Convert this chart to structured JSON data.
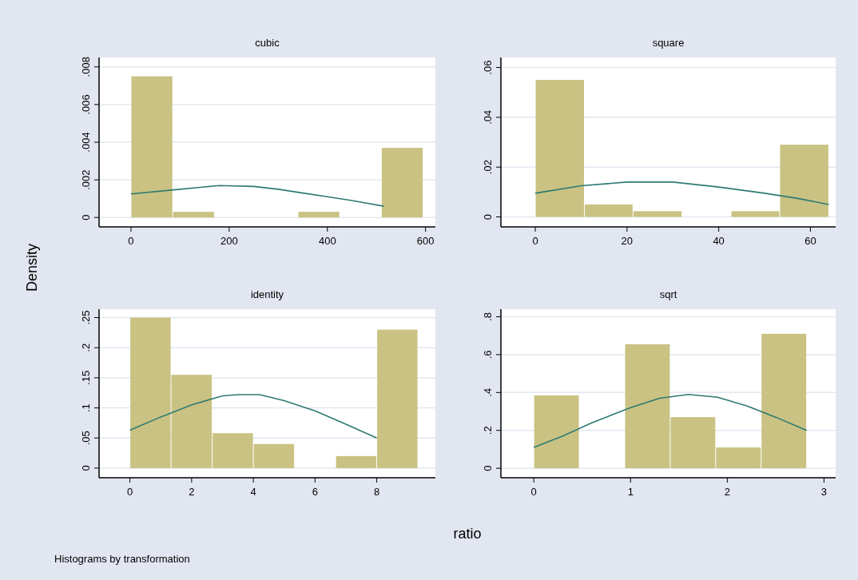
{
  "chart_data": [
    {
      "type": "histogram",
      "title": "cubic",
      "ylabel": "Density",
      "xlim": [
        -65,
        620
      ],
      "xticks": [
        0,
        200,
        400,
        600
      ],
      "ylim": [
        -0.0005,
        0.0085
      ],
      "yticks": [
        {
          "value": 0,
          "label": "0"
        },
        {
          "value": 0.002,
          "label": ".002"
        },
        {
          "value": 0.004,
          "label": ".004"
        },
        {
          "value": 0.006,
          "label": ".006"
        },
        {
          "value": 0.008,
          "label": ".008"
        }
      ],
      "grid": "y",
      "series": [
        {
          "color": "#c9c283",
          "bins": [
            0,
            85,
            170,
            255,
            340,
            425,
            510,
            595
          ],
          "values": [
            0.0075,
            0.0003,
            0,
            0,
            0.0003,
            0,
            0.0037
          ]
        },
        {
          "type": "line",
          "color": "#2e7a72",
          "x": [
            0,
            100,
            180,
            250,
            300,
            350,
            400,
            450,
            515
          ],
          "values": [
            0.00125,
            0.0015,
            0.0017,
            0.00165,
            0.0015,
            0.0013,
            0.0011,
            0.0009,
            0.0006
          ]
        }
      ]
    },
    {
      "type": "histogram",
      "title": "square",
      "xlim": [
        -7.5,
        65.5
      ],
      "xticks": [
        0,
        20,
        40,
        60
      ],
      "ylim": [
        -0.004,
        0.064
      ],
      "yticks": [
        {
          "value": 0,
          "label": "0"
        },
        {
          "value": 0.02,
          "label": ".02"
        },
        {
          "value": 0.04,
          "label": ".04"
        },
        {
          "value": 0.06,
          "label": ".06"
        }
      ],
      "grid": "y",
      "series": [
        {
          "color": "#c9c283",
          "bins": [
            0,
            10.7,
            21.3,
            32,
            42.7,
            53.3,
            64
          ],
          "values": [
            0.055,
            0.005,
            0.0023,
            0,
            0.0023,
            0.029
          ]
        },
        {
          "type": "line",
          "color": "#2e7a72",
          "x": [
            0,
            10,
            20,
            30,
            40,
            50,
            57,
            64
          ],
          "values": [
            0.0095,
            0.0125,
            0.014,
            0.014,
            0.012,
            0.0095,
            0.0075,
            0.005
          ]
        }
      ]
    },
    {
      "type": "histogram",
      "title": "identity",
      "xlabel": "ratio",
      "annotations": [
        "Histograms by transformation"
      ],
      "xlim": [
        -1,
        9.9
      ],
      "xticks": [
        0,
        2,
        4,
        6,
        8
      ],
      "ylim": [
        -0.016,
        0.264
      ],
      "yticks": [
        {
          "value": 0,
          "label": "0"
        },
        {
          "value": 0.05,
          "label": ".05"
        },
        {
          "value": 0.1,
          "label": ".1"
        },
        {
          "value": 0.15,
          "label": ".15"
        },
        {
          "value": 0.2,
          "label": ".2"
        },
        {
          "value": 0.25,
          "label": ".25"
        }
      ],
      "grid": "y",
      "series": [
        {
          "color": "#c9c283",
          "bins": [
            0,
            1.333,
            2.667,
            4,
            5.333,
            6.667,
            8,
            9.333
          ],
          "values": [
            0.25,
            0.155,
            0.058,
            0.04,
            0,
            0.02,
            0.23
          ]
        },
        {
          "type": "line",
          "color": "#2e7a72",
          "x": [
            0,
            1,
            2,
            3,
            3.5,
            4.2,
            5,
            6,
            7,
            8
          ],
          "values": [
            0.063,
            0.085,
            0.105,
            0.12,
            0.122,
            0.122,
            0.112,
            0.095,
            0.073,
            0.05
          ]
        }
      ]
    },
    {
      "type": "histogram",
      "title": "sqrt",
      "xlim": [
        -0.34,
        3.12
      ],
      "xticks": [
        0,
        1,
        2,
        3
      ],
      "ylim": [
        -0.05,
        0.84
      ],
      "yticks": [
        {
          "value": 0,
          "label": "0"
        },
        {
          "value": 0.2,
          "label": ".2"
        },
        {
          "value": 0.4,
          "label": ".4"
        },
        {
          "value": 0.6,
          "label": ".6"
        },
        {
          "value": 0.8,
          "label": ".8"
        }
      ],
      "grid": "y",
      "series": [
        {
          "color": "#c9c283",
          "bins": [
            0,
            0.47,
            0.94,
            1.41,
            1.88,
            2.35,
            2.82
          ],
          "values": [
            0.385,
            0,
            0.655,
            0.27,
            0.11,
            0.71
          ]
        },
        {
          "type": "line",
          "color": "#2e7a72",
          "x": [
            0,
            0.3,
            0.6,
            1,
            1.3,
            1.6,
            1.9,
            2.2,
            2.5,
            2.82
          ],
          "values": [
            0.11,
            0.17,
            0.24,
            0.32,
            0.37,
            0.39,
            0.375,
            0.33,
            0.27,
            0.2
          ]
        }
      ]
    }
  ]
}
